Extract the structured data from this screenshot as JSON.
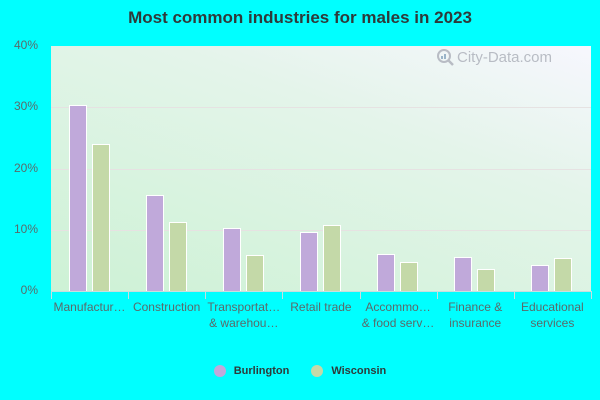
{
  "title": "Most common industries for males in 2023",
  "watermark": "City-Data.com",
  "colors": {
    "burlington": "#c0a9da",
    "wisconsin": "#c4d9a8"
  },
  "y_ticks": [
    "40%",
    "30%",
    "20%",
    "10%",
    "0%"
  ],
  "legend": [
    {
      "name": "Burlington",
      "color": "#c0a9da"
    },
    {
      "name": "Wisconsin",
      "color": "#c4d9a8"
    }
  ],
  "x_labels": [
    "Manufactur…",
    "Construction",
    "Transportat…\n& warehou…",
    "Retail trade",
    "Accommo…\n& food serv…",
    "Finance &\ninsurance",
    "Educational\nservices"
  ],
  "chart_data": {
    "type": "bar",
    "title": "Most common industries for males in 2023",
    "xlabel": "",
    "ylabel": "",
    "ylim": [
      0,
      40
    ],
    "y_ticks": [
      0,
      10,
      20,
      30,
      40
    ],
    "y_tick_format": "%",
    "grid": true,
    "legend_position": "bottom",
    "categories": [
      "Manufacturing",
      "Construction",
      "Transportation & warehousing",
      "Retail trade",
      "Accommodation & food services",
      "Finance & insurance",
      "Educational services"
    ],
    "series": [
      {
        "name": "Burlington",
        "color": "#c0a9da",
        "values": [
          30.4,
          15.7,
          10.3,
          9.6,
          6.0,
          5.6,
          4.2
        ]
      },
      {
        "name": "Wisconsin",
        "color": "#c4d9a8",
        "values": [
          24.0,
          11.3,
          5.9,
          10.8,
          4.7,
          3.6,
          5.4
        ]
      }
    ]
  }
}
